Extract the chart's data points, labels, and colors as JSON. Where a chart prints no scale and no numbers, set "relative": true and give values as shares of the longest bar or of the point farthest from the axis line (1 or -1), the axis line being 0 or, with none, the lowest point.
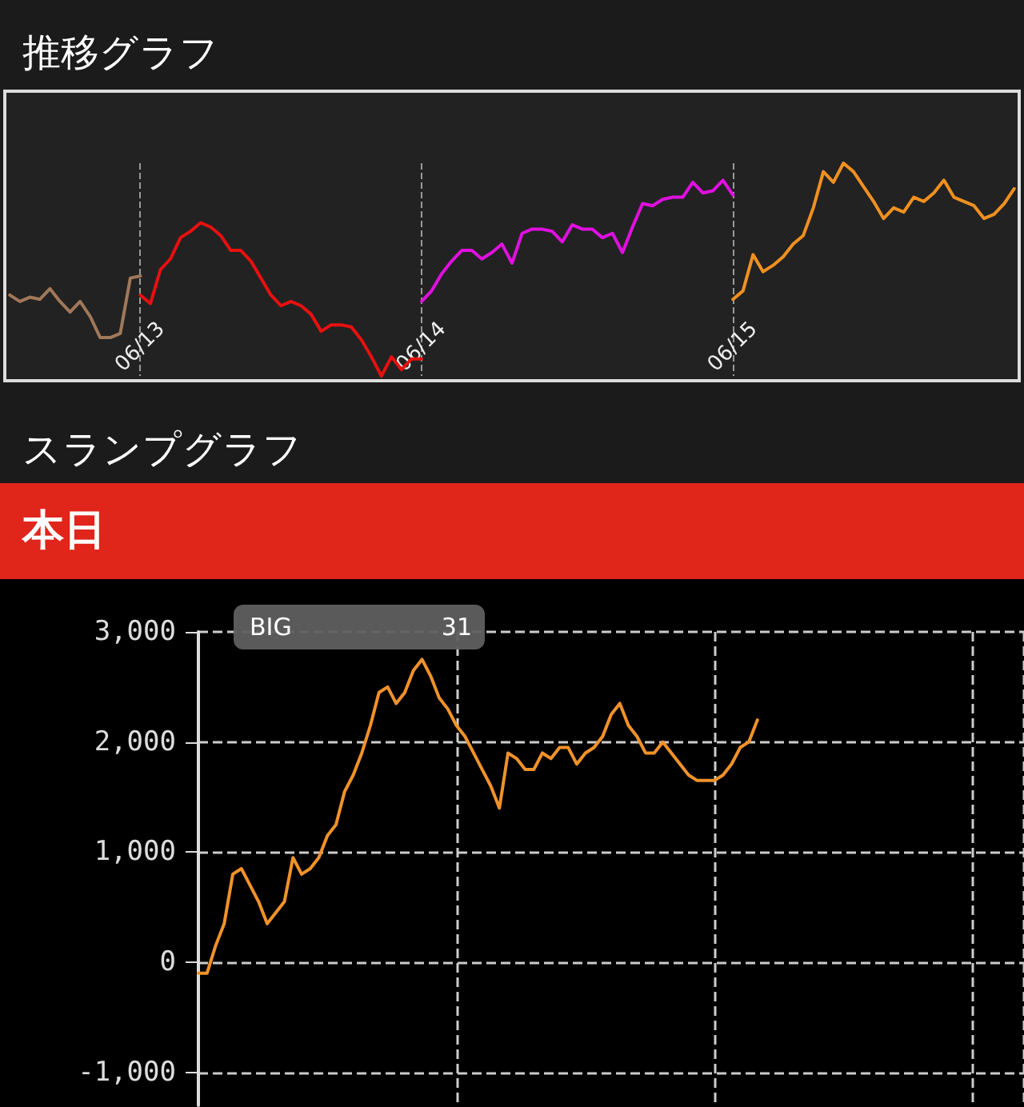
{
  "chart_data": [
    {
      "type": "line",
      "title": "推移グラフ",
      "relative": true,
      "tick_labels": "x",
      "grid": "x",
      "categories": [
        null,
        null,
        null,
        null,
        null,
        null,
        null,
        null,
        null,
        null,
        null,
        null,
        null,
        "06/13",
        null,
        null,
        null,
        null,
        null,
        null,
        null,
        null,
        null,
        null,
        null,
        null,
        null,
        null,
        null,
        null,
        null,
        null,
        null,
        null,
        null,
        null,
        null,
        null,
        null,
        null,
        null,
        "06/14",
        null,
        null,
        null,
        null,
        null,
        null,
        null,
        null,
        null,
        null,
        null,
        null,
        null,
        null,
        null,
        null,
        null,
        null,
        null,
        null,
        null,
        null,
        null,
        null,
        null,
        null,
        null,
        null,
        null,
        null,
        "06/15",
        null,
        null,
        null,
        null,
        null,
        null,
        null,
        null,
        null,
        null,
        null,
        null,
        null,
        null,
        null,
        null,
        null,
        null,
        null,
        null,
        null,
        null,
        null,
        null,
        null,
        null,
        null,
        null
      ],
      "series": [
        {
          "color": "#a0785a",
          "values": [
            0.38,
            0.35,
            0.37,
            0.36,
            0.41,
            0.35,
            0.3,
            0.35,
            0.28,
            0.18,
            0.18,
            0.2,
            0.46,
            0.47,
            null,
            null,
            null,
            null,
            null,
            null,
            null,
            null,
            null,
            null,
            null,
            null,
            null,
            null,
            null,
            null,
            null,
            null,
            null,
            null,
            null,
            null,
            null,
            null,
            null,
            null,
            null,
            null,
            null,
            null,
            null,
            null,
            null,
            null,
            null,
            null,
            null,
            null,
            null,
            null,
            null,
            null,
            null,
            null,
            null,
            null,
            null,
            null,
            null,
            null,
            null,
            null,
            null,
            null,
            null,
            null,
            null,
            null,
            null,
            null,
            null,
            null,
            null,
            null,
            null,
            null,
            null,
            null,
            null,
            null,
            null,
            null,
            null,
            null,
            null,
            null,
            null,
            null,
            null,
            null,
            null,
            null,
            null,
            null,
            null,
            null,
            null
          ]
        },
        {
          "color": "#e81010",
          "values": [
            null,
            null,
            null,
            null,
            null,
            null,
            null,
            null,
            null,
            null,
            null,
            null,
            null,
            0.38,
            0.34,
            0.5,
            0.55,
            0.65,
            0.68,
            0.72,
            0.7,
            0.66,
            0.59,
            0.59,
            0.54,
            0.46,
            0.38,
            0.33,
            0.35,
            0.33,
            0.29,
            0.21,
            0.24,
            0.24,
            0.23,
            0.17,
            0.09,
            0,
            0.09,
            0.03,
            0.08,
            0.08,
            null,
            null,
            null,
            null,
            null,
            null,
            null,
            null,
            null,
            null,
            null,
            null,
            null,
            null,
            null,
            null,
            null,
            null,
            null,
            null,
            null,
            null,
            null,
            null,
            null,
            null,
            null,
            null,
            null,
            null,
            null,
            null,
            null,
            null,
            null,
            null,
            null,
            null,
            null,
            null,
            null,
            null,
            null,
            null,
            null,
            null,
            null,
            null,
            null,
            null,
            null,
            null,
            null,
            null,
            null,
            null,
            null,
            null,
            null
          ]
        },
        {
          "color": "#e010e0",
          "values": [
            null,
            null,
            null,
            null,
            null,
            null,
            null,
            null,
            null,
            null,
            null,
            null,
            null,
            null,
            null,
            null,
            null,
            null,
            null,
            null,
            null,
            null,
            null,
            null,
            null,
            null,
            null,
            null,
            null,
            null,
            null,
            null,
            null,
            null,
            null,
            null,
            null,
            null,
            null,
            null,
            null,
            0.35,
            0.4,
            0.48,
            0.54,
            0.59,
            0.59,
            0.55,
            0.58,
            0.62,
            0.53,
            0.67,
            0.69,
            0.69,
            0.68,
            0.63,
            0.71,
            0.69,
            0.69,
            0.65,
            0.67,
            0.58,
            0.7,
            0.81,
            0.8,
            0.83,
            0.84,
            0.84,
            0.91,
            0.86,
            0.87,
            0.92,
            0.85,
            null,
            null,
            null,
            null,
            null,
            null,
            null,
            null,
            null,
            null,
            null,
            null,
            null,
            null,
            null,
            null,
            null,
            null,
            null,
            null,
            null,
            null,
            null,
            null,
            null,
            null,
            null,
            null
          ]
        },
        {
          "color": "#f09020",
          "values": [
            null,
            null,
            null,
            null,
            null,
            null,
            null,
            null,
            null,
            null,
            null,
            null,
            null,
            null,
            null,
            null,
            null,
            null,
            null,
            null,
            null,
            null,
            null,
            null,
            null,
            null,
            null,
            null,
            null,
            null,
            null,
            null,
            null,
            null,
            null,
            null,
            null,
            null,
            null,
            null,
            null,
            null,
            null,
            null,
            null,
            null,
            null,
            null,
            null,
            null,
            null,
            null,
            null,
            null,
            null,
            null,
            null,
            null,
            null,
            null,
            null,
            null,
            null,
            null,
            null,
            null,
            null,
            null,
            null,
            null,
            null,
            null,
            0.36,
            0.4,
            0.57,
            0.49,
            0.52,
            0.56,
            0.62,
            0.66,
            0.79,
            0.96,
            0.91,
            1,
            0.96,
            0.89,
            0.82,
            0.74,
            0.79,
            0.77,
            0.84,
            0.82,
            0.86,
            0.92,
            0.84,
            0.82,
            0.8,
            0.74,
            0.76,
            0.81,
            0.88
          ]
        }
      ]
    },
    {
      "type": "line",
      "title": "スランプグラフ",
      "subtitle": "本日",
      "annotations": [
        "BIG",
        "31"
      ],
      "ylim": [
        -1300,
        3000
      ],
      "yticks": [
        {
          "value": -1000,
          "label": "-1,000"
        },
        0,
        {
          "value": 1000,
          "label": "1,000"
        },
        {
          "value": 2000,
          "label": "2,000"
        },
        {
          "value": 3000,
          "label": "3,000"
        }
      ],
      "tick_labels": "y",
      "grid": true,
      "categories": [
        null,
        null,
        null,
        null,
        null,
        null,
        null,
        null,
        null,
        null,
        null,
        null,
        null,
        null,
        null,
        null,
        null,
        null,
        null,
        null,
        null,
        null,
        null,
        null,
        null,
        null,
        null,
        null,
        null,
        null,
        null,
        null,
        null,
        null,
        null,
        null,
        null,
        null,
        null,
        null,
        null,
        null,
        null,
        null,
        null,
        null,
        null,
        null,
        null,
        null,
        null,
        null,
        null,
        null,
        null,
        null,
        null,
        null,
        null,
        null,
        null,
        null,
        null,
        null,
        null,
        null,
        null,
        null,
        null,
        null,
        null,
        null,
        null,
        null,
        null,
        null,
        null,
        null,
        null,
        null,
        null,
        null,
        null,
        null,
        null,
        null,
        null,
        null,
        null,
        null,
        null,
        null,
        null,
        null,
        null,
        null,
        null
      ],
      "series": [
        {
          "color": "#f0922a",
          "values": [
            -100,
            -100,
            150,
            350,
            800,
            850,
            700,
            550,
            350,
            450,
            550,
            950,
            800,
            850,
            950,
            1150,
            1250,
            1550,
            1700,
            1900,
            2150,
            2450,
            2500,
            2350,
            2450,
            2650,
            2750,
            2600,
            2400,
            2300,
            2150,
            2050,
            1900,
            1750,
            1600,
            1400,
            1900,
            1850,
            1750,
            1750,
            1900,
            1850,
            1950,
            1950,
            1800,
            1900,
            1950,
            2050,
            2250,
            2350,
            2150,
            2050,
            1900,
            1900,
            2000,
            1900,
            1800,
            1700,
            1650,
            1650,
            1650,
            1700,
            1800,
            1950,
            2000,
            2200,
            null,
            null,
            null,
            null,
            null,
            null,
            null,
            null,
            null,
            null,
            null,
            null,
            null,
            null,
            null,
            null,
            null,
            null,
            null,
            null,
            null,
            null,
            null,
            null,
            null,
            null,
            null,
            null,
            null,
            null,
            null
          ]
        }
      ]
    }
  ]
}
